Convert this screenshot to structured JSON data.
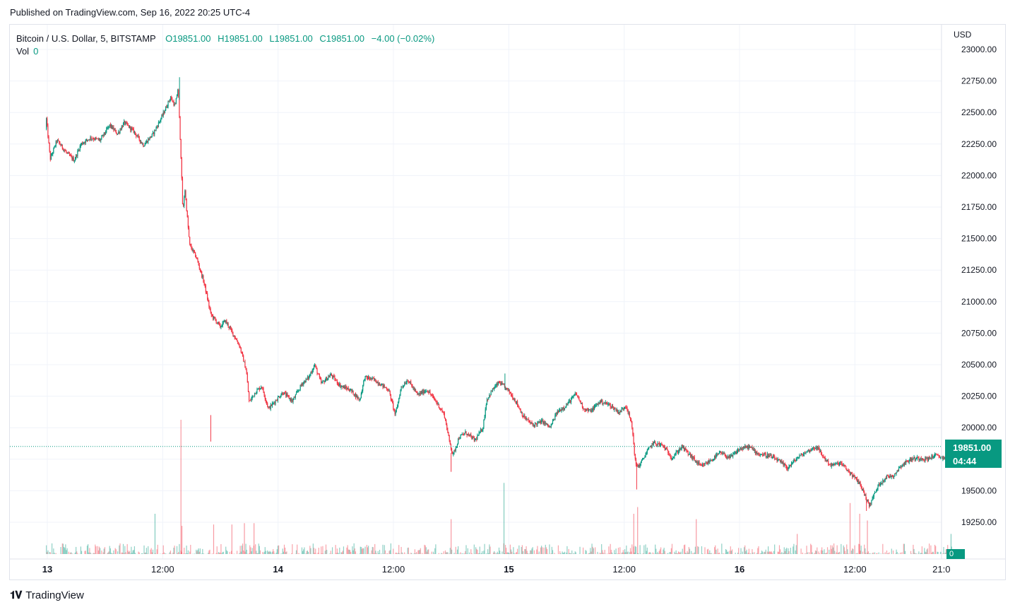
{
  "published": "Published on TradingView.com, Sep 16, 2022 20:25 UTC-4",
  "legend": {
    "symbol": "Bitcoin / U.S. Dollar, 5, BITSTAMP",
    "open": "O19851.00",
    "high": "H19851.00",
    "low": "L19851.00",
    "close": "C19851.00",
    "change": "−4.00 (−0.02%)",
    "vol_label": "Vol",
    "vol_value": "0"
  },
  "currency": "USD",
  "last_price": "19851.00",
  "countdown": "04:44",
  "zero_label": "0",
  "footer_brand": "TradingView",
  "colors": {
    "up": "#089981",
    "down": "#f23645",
    "grid": "#f0f3fa",
    "axis_text": "#131722"
  },
  "chart_data": {
    "type": "candlestick",
    "symbol": "Bitcoin / U.S. Dollar",
    "interval": "5",
    "exchange": "BITSTAMP",
    "ylim": [
      19200,
      23050
    ],
    "y_ticks": [
      19250,
      19500,
      19750,
      20000,
      20250,
      20500,
      20750,
      21000,
      21250,
      21500,
      21750,
      22000,
      22250,
      22500,
      22750,
      23000
    ],
    "y_tick_labels": [
      "19250.00",
      "19500.00",
      "19750.00",
      "20000.00",
      "20250.00",
      "20500.00",
      "20750.00",
      "21000.00",
      "21250.00",
      "21500.00",
      "21750.00",
      "22000.00",
      "22250.00",
      "22500.00",
      "22750.00",
      "23000.00"
    ],
    "x_tick_labels": [
      "13",
      "12:00",
      "14",
      "12:00",
      "15",
      "12:00",
      "16",
      "12:00",
      "21:0"
    ],
    "x_tick_hours": [
      0,
      12,
      24,
      36,
      48,
      60,
      72,
      84,
      93
    ],
    "x_range_hours": [
      0,
      96.5
    ],
    "price_path": [
      [
        -0.1,
        22450
      ],
      [
        0.3,
        22130
      ],
      [
        1.0,
        22280
      ],
      [
        2.0,
        22180
      ],
      [
        2.8,
        22120
      ],
      [
        3.5,
        22250
      ],
      [
        4.5,
        22300
      ],
      [
        5.5,
        22280
      ],
      [
        6.5,
        22400
      ],
      [
        7.3,
        22330
      ],
      [
        8.0,
        22420
      ],
      [
        9.0,
        22350
      ],
      [
        10.0,
        22240
      ],
      [
        11.0,
        22330
      ],
      [
        12.0,
        22480
      ],
      [
        12.8,
        22620
      ],
      [
        13.3,
        22550
      ],
      [
        13.6,
        22700
      ],
      [
        13.9,
        22150
      ],
      [
        14.1,
        21700
      ],
      [
        14.3,
        21900
      ],
      [
        14.8,
        21450
      ],
      [
        15.5,
        21350
      ],
      [
        16.3,
        21150
      ],
      [
        17.0,
        20900
      ],
      [
        18.0,
        20800
      ],
      [
        18.5,
        20850
      ],
      [
        19.2,
        20760
      ],
      [
        20.0,
        20650
      ],
      [
        20.7,
        20450
      ],
      [
        21.0,
        20200
      ],
      [
        21.6,
        20280
      ],
      [
        22.3,
        20330
      ],
      [
        23.0,
        20150
      ],
      [
        23.8,
        20220
      ],
      [
        24.5,
        20280
      ],
      [
        25.5,
        20210
      ],
      [
        26.5,
        20350
      ],
      [
        27.2,
        20400
      ],
      [
        27.8,
        20500
      ],
      [
        28.5,
        20350
      ],
      [
        29.5,
        20420
      ],
      [
        30.5,
        20330
      ],
      [
        31.5,
        20300
      ],
      [
        32.5,
        20220
      ],
      [
        33.0,
        20400
      ],
      [
        34.0,
        20380
      ],
      [
        35.5,
        20300
      ],
      [
        36.2,
        20100
      ],
      [
        36.8,
        20320
      ],
      [
        37.5,
        20380
      ],
      [
        38.5,
        20260
      ],
      [
        39.5,
        20300
      ],
      [
        40.5,
        20200
      ],
      [
        41.3,
        20100
      ],
      [
        41.8,
        19900
      ],
      [
        42.2,
        19780
      ],
      [
        42.8,
        19920
      ],
      [
        43.5,
        19960
      ],
      [
        44.5,
        19900
      ],
      [
        45.3,
        20000
      ],
      [
        45.7,
        20220
      ],
      [
        46.3,
        20300
      ],
      [
        47.0,
        20360
      ],
      [
        48.0,
        20290
      ],
      [
        48.8,
        20200
      ],
      [
        49.5,
        20090
      ],
      [
        50.5,
        20020
      ],
      [
        51.5,
        20050
      ],
      [
        52.3,
        20000
      ],
      [
        53.0,
        20120
      ],
      [
        54.0,
        20180
      ],
      [
        55.0,
        20270
      ],
      [
        55.8,
        20150
      ],
      [
        56.5,
        20130
      ],
      [
        57.5,
        20210
      ],
      [
        58.5,
        20180
      ],
      [
        59.5,
        20120
      ],
      [
        60.2,
        20180
      ],
      [
        60.8,
        20020
      ],
      [
        61.2,
        19700
      ],
      [
        61.6,
        19700
      ],
      [
        62.3,
        19800
      ],
      [
        63.0,
        19880
      ],
      [
        64.0,
        19860
      ],
      [
        65.0,
        19760
      ],
      [
        66.0,
        19850
      ],
      [
        67.0,
        19770
      ],
      [
        68.0,
        19690
      ],
      [
        69.0,
        19740
      ],
      [
        70.0,
        19800
      ],
      [
        71.0,
        19760
      ],
      [
        72.0,
        19830
      ],
      [
        73.0,
        19850
      ],
      [
        74.0,
        19790
      ],
      [
        75.0,
        19780
      ],
      [
        76.0,
        19740
      ],
      [
        77.0,
        19680
      ],
      [
        78.0,
        19760
      ],
      [
        79.0,
        19810
      ],
      [
        80.0,
        19850
      ],
      [
        80.8,
        19760
      ],
      [
        81.5,
        19700
      ],
      [
        82.5,
        19720
      ],
      [
        83.5,
        19640
      ],
      [
        84.5,
        19560
      ],
      [
        85.0,
        19470
      ],
      [
        85.5,
        19380
      ],
      [
        86.0,
        19470
      ],
      [
        86.5,
        19550
      ],
      [
        87.3,
        19610
      ],
      [
        88.0,
        19620
      ],
      [
        88.8,
        19700
      ],
      [
        89.8,
        19750
      ],
      [
        90.8,
        19760
      ],
      [
        91.5,
        19750
      ],
      [
        92.3,
        19780
      ],
      [
        93.3,
        19760
      ],
      [
        94.0,
        19800
      ],
      [
        94.5,
        19850
      ]
    ],
    "volume_spikes": [
      {
        "hour": 13.9,
        "value": 1.0,
        "direction": "down"
      },
      {
        "hour": 11.2,
        "value": 0.3,
        "direction": "up"
      },
      {
        "hour": 14.0,
        "value": 0.21,
        "direction": "down"
      },
      {
        "hour": 17.3,
        "value": 0.22,
        "direction": "down"
      },
      {
        "hour": 19.2,
        "value": 0.22,
        "direction": "down"
      },
      {
        "hour": 20.5,
        "value": 0.23,
        "direction": "down"
      },
      {
        "hour": 21.5,
        "value": 0.23,
        "direction": "down"
      },
      {
        "hour": 42.0,
        "value": 0.26,
        "direction": "down"
      },
      {
        "hour": 47.5,
        "value": 0.53,
        "direction": "up"
      },
      {
        "hour": 61.0,
        "value": 0.3,
        "direction": "down"
      },
      {
        "hour": 61.4,
        "value": 0.35,
        "direction": "down"
      },
      {
        "hour": 67.5,
        "value": 0.26,
        "direction": "down"
      },
      {
        "hour": 78.0,
        "value": 0.15,
        "direction": "down"
      },
      {
        "hour": 83.5,
        "value": 0.38,
        "direction": "down"
      },
      {
        "hour": 84.5,
        "value": 0.3,
        "direction": "down"
      },
      {
        "hour": 85.3,
        "value": 0.25,
        "direction": "down"
      },
      {
        "hour": 94.0,
        "value": 0.15,
        "direction": "up"
      }
    ]
  }
}
